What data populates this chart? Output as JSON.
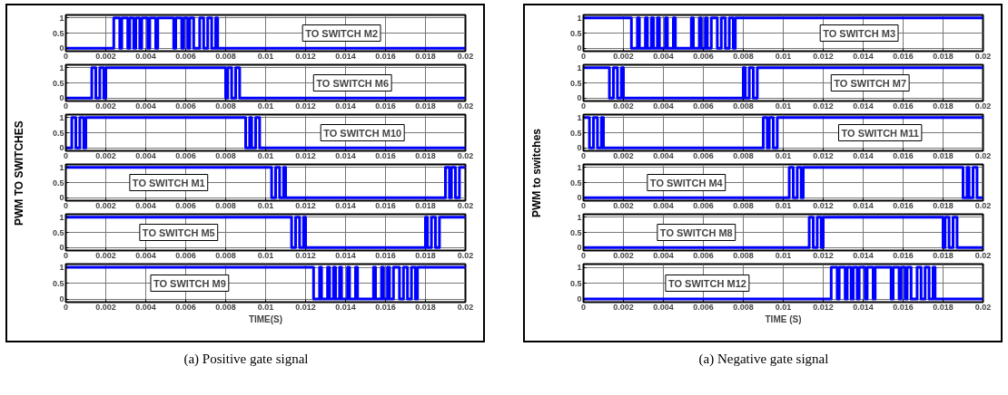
{
  "chart_data": [
    {
      "type": "step",
      "color": "#0000ff",
      "xlim": [
        0,
        0.02
      ],
      "ylim": [
        -0.1,
        1.1
      ],
      "xticks": [
        0,
        0.002,
        0.004,
        0.006,
        0.008,
        0.01,
        0.012,
        0.014,
        0.016,
        0.018,
        0.02
      ],
      "yticks": [
        0,
        0.5,
        1
      ],
      "grid": true,
      "annotations": [
        "TO SWITCH M2"
      ],
      "x": [
        0,
        0.0024,
        0.0027,
        0.0028,
        0.0031,
        0.0032,
        0.0034,
        0.0035,
        0.0037,
        0.0038,
        0.0041,
        0.0042,
        0.0045,
        0.0046,
        0.0054,
        0.0055,
        0.0058,
        0.0059,
        0.0061,
        0.0062,
        0.0064,
        0.0067,
        0.0069,
        0.0071,
        0.0073,
        0.0075,
        0.0076,
        0.02
      ],
      "values": [
        0,
        1,
        0,
        1,
        0,
        1,
        0,
        1,
        0,
        1,
        0,
        1,
        0,
        1,
        0,
        1,
        0,
        1,
        0,
        1,
        0,
        1,
        0,
        1,
        0,
        1,
        0,
        0
      ]
    },
    {
      "type": "step",
      "color": "#0000ff",
      "xlim": [
        0,
        0.02
      ],
      "ylim": [
        -0.1,
        1.1
      ],
      "xticks": [
        0,
        0.002,
        0.004,
        0.006,
        0.008,
        0.01,
        0.012,
        0.014,
        0.016,
        0.018,
        0.02
      ],
      "yticks": [
        0,
        0.5,
        1
      ],
      "grid": true,
      "annotations": [
        "TO SWITCH M6"
      ],
      "x": [
        0,
        0.0013,
        0.0015,
        0.0017,
        0.0019,
        0.002,
        0.008,
        0.0081,
        0.0083,
        0.0085,
        0.0087,
        0.02
      ],
      "values": [
        0,
        1,
        0,
        1,
        0,
        1,
        0,
        1,
        0,
        1,
        0,
        0
      ]
    },
    {
      "type": "step",
      "color": "#0000ff",
      "xlim": [
        0,
        0.02
      ],
      "ylim": [
        -0.1,
        1.1
      ],
      "xticks": [
        0,
        0.002,
        0.004,
        0.006,
        0.008,
        0.01,
        0.012,
        0.014,
        0.016,
        0.018,
        0.02
      ],
      "yticks": [
        0,
        0.5,
        1
      ],
      "grid": true,
      "annotations": [
        "TO SWITCH M10"
      ],
      "ylabel": "PWM TO SWITCHES",
      "x": [
        0,
        0.0003,
        0.0005,
        0.0007,
        0.0009,
        0.001,
        0.009,
        0.0092,
        0.0093,
        0.0095,
        0.0097,
        0.02
      ],
      "values": [
        0,
        1,
        0,
        1,
        0,
        1,
        0,
        1,
        0,
        1,
        0,
        0
      ]
    },
    {
      "type": "step",
      "color": "#0000ff",
      "xlim": [
        0,
        0.02
      ],
      "ylim": [
        -0.1,
        1.1
      ],
      "xticks": [
        0,
        0.002,
        0.004,
        0.006,
        0.008,
        0.01,
        0.012,
        0.014,
        0.016,
        0.018,
        0.02
      ],
      "yticks": [
        0,
        0.5,
        1
      ],
      "grid": true,
      "annotations": [
        "TO SWITCH M1"
      ],
      "x": [
        0,
        0.0103,
        0.0105,
        0.0107,
        0.0109,
        0.011,
        0.019,
        0.0192,
        0.0193,
        0.0195,
        0.0197,
        0.02
      ],
      "values": [
        1,
        0,
        1,
        0,
        1,
        0,
        1,
        0,
        1,
        0,
        1,
        1
      ]
    },
    {
      "type": "step",
      "color": "#0000ff",
      "xlim": [
        0,
        0.02
      ],
      "ylim": [
        -0.1,
        1.1
      ],
      "xticks": [
        0,
        0.002,
        0.004,
        0.006,
        0.008,
        0.01,
        0.012,
        0.014,
        0.016,
        0.018,
        0.02
      ],
      "yticks": [
        0,
        0.5,
        1
      ],
      "grid": true,
      "annotations": [
        "TO SWITCH M5"
      ],
      "x": [
        0,
        0.0113,
        0.0115,
        0.0117,
        0.0119,
        0.012,
        0.018,
        0.0181,
        0.0183,
        0.0185,
        0.0187,
        0.02
      ],
      "values": [
        1,
        0,
        1,
        0,
        1,
        0,
        1,
        0,
        1,
        0,
        1,
        1
      ]
    },
    {
      "type": "step",
      "color": "#0000ff",
      "xlim": [
        0,
        0.02
      ],
      "ylim": [
        -0.1,
        1.1
      ],
      "xticks": [
        0,
        0.002,
        0.004,
        0.006,
        0.008,
        0.01,
        0.012,
        0.014,
        0.016,
        0.018,
        0.02
      ],
      "yticks": [
        0,
        0.5,
        1
      ],
      "grid": true,
      "annotations": [
        "TO SWITCH M9",
        "(a) Positive gate signal"
      ],
      "xlabel": "TIME(S)",
      "x": [
        0,
        0.0124,
        0.0127,
        0.0128,
        0.0131,
        0.0132,
        0.0134,
        0.0135,
        0.0137,
        0.0138,
        0.0141,
        0.0142,
        0.0145,
        0.0146,
        0.0154,
        0.0155,
        0.0158,
        0.0159,
        0.0161,
        0.0162,
        0.0164,
        0.0167,
        0.0169,
        0.0171,
        0.0173,
        0.0175,
        0.0176,
        0.02
      ],
      "values": [
        1,
        0,
        1,
        0,
        1,
        0,
        1,
        0,
        1,
        0,
        1,
        0,
        1,
        0,
        1,
        0,
        1,
        0,
        1,
        0,
        1,
        0,
        1,
        0,
        1,
        0,
        1,
        1
      ]
    },
    {
      "type": "step",
      "color": "#0000ff",
      "xlim": [
        0,
        0.02
      ],
      "ylim": [
        -0.1,
        1.1
      ],
      "xticks": [
        0,
        0.002,
        0.004,
        0.006,
        0.008,
        0.01,
        0.012,
        0.014,
        0.016,
        0.018,
        0.02
      ],
      "yticks": [
        0,
        0.5,
        1
      ],
      "grid": true,
      "annotations": [
        "TO SWITCH M3"
      ],
      "x": [
        0,
        0.0024,
        0.0027,
        0.0028,
        0.0031,
        0.0032,
        0.0034,
        0.0035,
        0.0037,
        0.0038,
        0.0041,
        0.0042,
        0.0045,
        0.0046,
        0.0054,
        0.0055,
        0.0058,
        0.0059,
        0.0061,
        0.0062,
        0.0064,
        0.0067,
        0.0069,
        0.0071,
        0.0073,
        0.0075,
        0.0076,
        0.02
      ],
      "values": [
        1,
        0,
        1,
        0,
        1,
        0,
        1,
        0,
        1,
        0,
        1,
        0,
        1,
        0,
        1,
        0,
        1,
        0,
        1,
        0,
        1,
        0,
        1,
        0,
        1,
        0,
        1,
        1
      ]
    },
    {
      "type": "step",
      "color": "#0000ff",
      "xlim": [
        0,
        0.02
      ],
      "ylim": [
        -0.1,
        1.1
      ],
      "xticks": [
        0,
        0.002,
        0.004,
        0.006,
        0.008,
        0.01,
        0.012,
        0.014,
        0.016,
        0.018,
        0.02
      ],
      "yticks": [
        0,
        0.5,
        1
      ],
      "grid": true,
      "annotations": [
        "TO SWITCH M7"
      ],
      "x": [
        0,
        0.0013,
        0.0015,
        0.0017,
        0.0019,
        0.002,
        0.008,
        0.0081,
        0.0083,
        0.0085,
        0.0087,
        0.02
      ],
      "values": [
        1,
        0,
        1,
        0,
        1,
        0,
        1,
        0,
        1,
        0,
        1,
        1
      ]
    },
    {
      "type": "step",
      "color": "#0000ff",
      "xlim": [
        0,
        0.02
      ],
      "ylim": [
        -0.1,
        1.1
      ],
      "xticks": [
        0,
        0.002,
        0.004,
        0.006,
        0.008,
        0.01,
        0.012,
        0.014,
        0.016,
        0.018,
        0.02
      ],
      "yticks": [
        0,
        0.5,
        1
      ],
      "grid": true,
      "annotations": [
        "TO SWITCH M11"
      ],
      "ylabel": "PWM to switches",
      "x": [
        0,
        0.0003,
        0.0005,
        0.0007,
        0.0009,
        0.001,
        0.009,
        0.0092,
        0.0093,
        0.0095,
        0.0097,
        0.02
      ],
      "values": [
        1,
        0,
        1,
        0,
        1,
        0,
        1,
        0,
        1,
        0,
        1,
        1
      ]
    },
    {
      "type": "step",
      "color": "#0000ff",
      "xlim": [
        0,
        0.02
      ],
      "ylim": [
        -0.1,
        1.1
      ],
      "xticks": [
        0,
        0.002,
        0.004,
        0.006,
        0.008,
        0.01,
        0.012,
        0.014,
        0.016,
        0.018,
        0.02
      ],
      "yticks": [
        0,
        0.5,
        1
      ],
      "grid": true,
      "annotations": [
        "TO SWITCH M4"
      ],
      "x": [
        0,
        0.0103,
        0.0105,
        0.0107,
        0.0109,
        0.011,
        0.019,
        0.0192,
        0.0193,
        0.0195,
        0.0197,
        0.02
      ],
      "values": [
        0,
        1,
        0,
        1,
        0,
        1,
        0,
        1,
        0,
        1,
        0,
        0
      ]
    },
    {
      "type": "step",
      "color": "#0000ff",
      "xlim": [
        0,
        0.02
      ],
      "ylim": [
        -0.1,
        1.1
      ],
      "xticks": [
        0,
        0.002,
        0.004,
        0.006,
        0.008,
        0.01,
        0.012,
        0.014,
        0.016,
        0.018,
        0.02
      ],
      "yticks": [
        0,
        0.5,
        1
      ],
      "grid": true,
      "annotations": [
        "TO SWITCH M8"
      ],
      "x": [
        0,
        0.0113,
        0.0115,
        0.0117,
        0.0119,
        0.012,
        0.018,
        0.0181,
        0.0183,
        0.0185,
        0.0187,
        0.02
      ],
      "values": [
        0,
        1,
        0,
        1,
        0,
        1,
        0,
        1,
        0,
        1,
        0,
        0
      ]
    },
    {
      "type": "step",
      "color": "#0000ff",
      "xlim": [
        0,
        0.02
      ],
      "ylim": [
        -0.1,
        1.1
      ],
      "xticks": [
        0,
        0.002,
        0.004,
        0.006,
        0.008,
        0.01,
        0.012,
        0.014,
        0.016,
        0.018,
        0.02
      ],
      "yticks": [
        0,
        0.5,
        1
      ],
      "grid": true,
      "annotations": [
        "TO SWITCH M12",
        "(a) Negative gate signal"
      ],
      "xlabel": "TIME (S)",
      "x": [
        0,
        0.0124,
        0.0127,
        0.0128,
        0.0131,
        0.0132,
        0.0134,
        0.0135,
        0.0137,
        0.0138,
        0.0141,
        0.0142,
        0.0145,
        0.0146,
        0.0154,
        0.0155,
        0.0158,
        0.0159,
        0.0161,
        0.0162,
        0.0164,
        0.0167,
        0.0169,
        0.0171,
        0.0173,
        0.0175,
        0.0176,
        0.02
      ],
      "values": [
        0,
        1,
        0,
        1,
        0,
        1,
        0,
        1,
        0,
        1,
        0,
        1,
        0,
        1,
        0,
        1,
        0,
        1,
        0,
        1,
        0,
        1,
        0,
        1,
        0,
        1,
        0,
        0
      ]
    }
  ]
}
